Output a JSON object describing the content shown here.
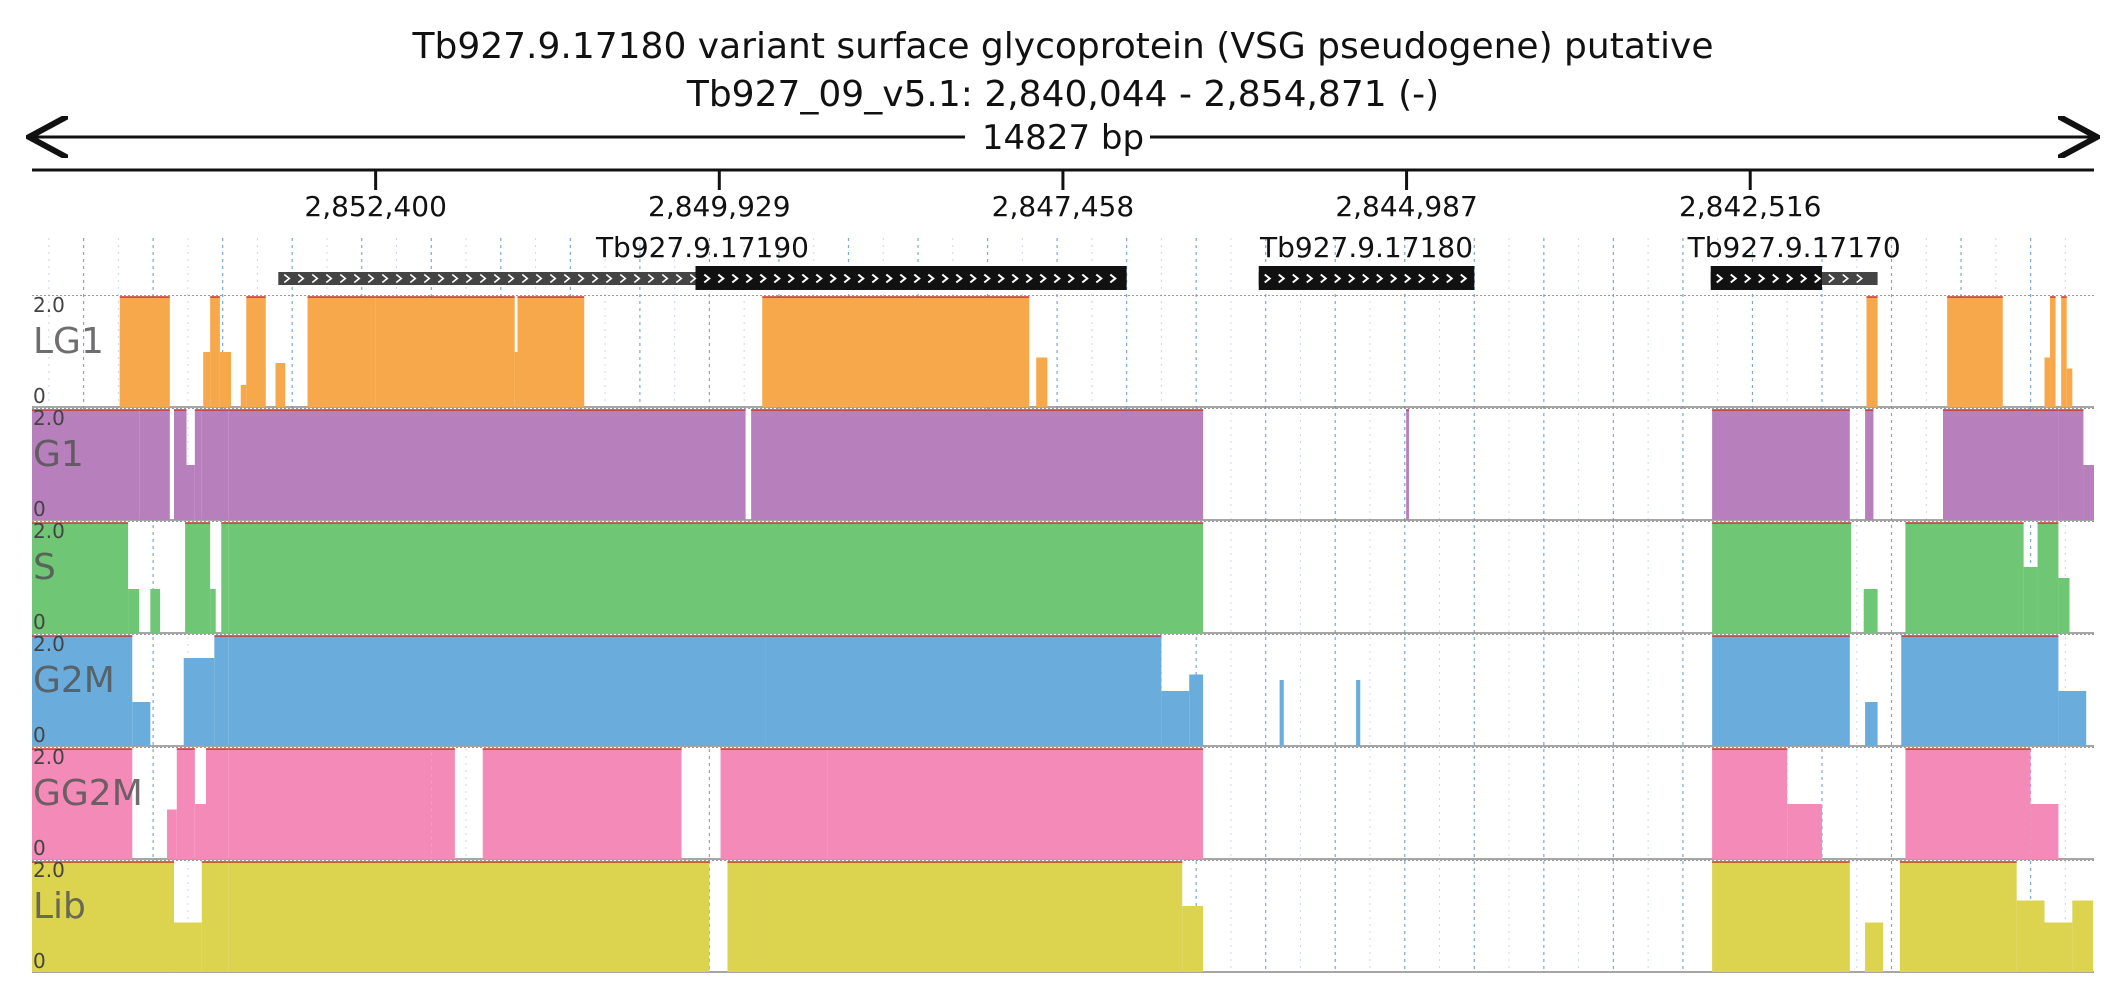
{
  "title": {
    "line1": "Tb927.9.17180  variant surface glycoprotein (VSG  pseudogene)  putative",
    "line2": "Tb927_09_v5.1: 2,840,044 - 2,854,871 (-)",
    "span_label": "14827 bp"
  },
  "chart_data": {
    "type": "area",
    "title": "Tb927.9.17180  variant surface glycoprotein (VSG  pseudogene)  putative",
    "subtitle": "Tb927_09_v5.1: 2,840,044 - 2,854,871 (-)",
    "region": {
      "chrom": "Tb927_09_v5.1",
      "start": 2840044,
      "end": 2854871,
      "strand": "-",
      "length_label": "14827 bp"
    },
    "x_axis": {
      "direction": "reversed",
      "ticks": [
        2852400,
        2849929,
        2847458,
        2844987,
        2842516
      ],
      "tick_labels": [
        "2,852,400",
        "2,849,929",
        "2,847,458",
        "2,844,987",
        "2,842,516"
      ]
    },
    "genes": [
      {
        "id": "Tb927.9.17190",
        "start": 2847000,
        "end": 2853100,
        "cds_start": 2847000,
        "cds_end": 2850100
      },
      {
        "id": "Tb927.9.17180",
        "start": 2844500,
        "end": 2846050,
        "cds_start": 2844500,
        "cds_end": 2846050
      },
      {
        "id": "Tb927.9.17170",
        "start": 2841600,
        "end": 2842800,
        "cds_start": 2842000,
        "cds_end": 2842800
      }
    ],
    "ylim": [
      0,
      2.0
    ],
    "y_tick_labels": [
      "2.0",
      "0"
    ],
    "grid": true,
    "tracks": [
      {
        "name": "LG1",
        "color": "#f7a84a",
        "segments": [
          [
            2854200,
            2854240,
            1.5
          ],
          [
            2854240,
            2853880,
            2.0
          ],
          [
            2853640,
            2853590,
            1.0
          ],
          [
            2853590,
            2853520,
            2.0
          ],
          [
            2853520,
            2853440,
            1.0
          ],
          [
            2853370,
            2853330,
            0.4
          ],
          [
            2853330,
            2853190,
            2.0
          ],
          [
            2853120,
            2853050,
            0.8
          ],
          [
            2852890,
            2852400,
            2.0
          ],
          [
            2852400,
            2851400,
            2.0
          ],
          [
            2851400,
            2851380,
            1.0
          ],
          [
            2851380,
            2850900,
            2.0
          ],
          [
            2849620,
            2847700,
            2.0
          ],
          [
            2847650,
            2847570,
            0.9
          ],
          [
            2841680,
            2841600,
            2.0
          ],
          [
            2841100,
            2840700,
            2.0
          ],
          [
            2840400,
            2840360,
            0.9
          ],
          [
            2840360,
            2840320,
            2.0
          ],
          [
            2840280,
            2840240,
            2.0
          ],
          [
            2840240,
            2840200,
            0.7
          ]
        ]
      },
      {
        "name": "G1",
        "color": "#b77fbb",
        "segments": [
          [
            2854871,
            2854100,
            2.0
          ],
          [
            2854100,
            2853880,
            2.0
          ],
          [
            2853850,
            2853760,
            2.0
          ],
          [
            2853760,
            2853700,
            1.0
          ],
          [
            2853700,
            2853650,
            2.0
          ],
          [
            2853650,
            2853460,
            2.0
          ],
          [
            2853460,
            2852800,
            2.0
          ],
          [
            2852800,
            2849740,
            2.0
          ],
          [
            2849700,
            2846450,
            2.0
          ],
          [
            2844990,
            2844970,
            2.0
          ],
          [
            2842790,
            2841800,
            2.0
          ],
          [
            2841690,
            2841630,
            2.0
          ],
          [
            2841130,
            2840300,
            2.0
          ],
          [
            2840300,
            2840120,
            2.0
          ],
          [
            2840120,
            2840000,
            1.0
          ],
          [
            2840000,
            2839800,
            2.0
          ],
          [
            2839800,
            2839700,
            1.0
          ],
          [
            2839700,
            2839590,
            2.0
          ],
          [
            2839590,
            2839550,
            1.0
          ],
          [
            2839490,
            2839400,
            1.0
          ],
          [
            2838940,
            2840044,
            2.0
          ]
        ]
      },
      {
        "name": "S",
        "color": "#6fc674",
        "segments": [
          [
            2854871,
            2854180,
            2.0
          ],
          [
            2854180,
            2854100,
            0.8
          ],
          [
            2854020,
            2853950,
            0.8
          ],
          [
            2853770,
            2853590,
            2.0
          ],
          [
            2853590,
            2853550,
            0.8
          ],
          [
            2853510,
            2853460,
            2.0
          ],
          [
            2853460,
            2846450,
            2.0
          ],
          [
            2842790,
            2841790,
            2.0
          ],
          [
            2841700,
            2841600,
            0.8
          ],
          [
            2841400,
            2840550,
            2.0
          ],
          [
            2840550,
            2840450,
            1.2
          ],
          [
            2840450,
            2840300,
            2.0
          ],
          [
            2840300,
            2840220,
            1.0
          ],
          [
            2839950,
            2839880,
            0.8
          ],
          [
            2839400,
            2839300,
            1.0
          ],
          [
            2839300,
            2840044,
            2.0
          ]
        ]
      },
      {
        "name": "G2M",
        "color": "#6aaddc",
        "segments": [
          [
            2854871,
            2854150,
            2.0
          ],
          [
            2854150,
            2854020,
            0.8
          ],
          [
            2853780,
            2853560,
            1.6
          ],
          [
            2853560,
            2853460,
            2.0
          ],
          [
            2853460,
            2849600,
            2.0
          ],
          [
            2849600,
            2846750,
            2.0
          ],
          [
            2846750,
            2846550,
            1.0
          ],
          [
            2846550,
            2846450,
            1.3
          ],
          [
            2845900,
            2845870,
            1.2
          ],
          [
            2845350,
            2845320,
            1.2
          ],
          [
            2842790,
            2841800,
            2.0
          ],
          [
            2841690,
            2841600,
            0.8
          ],
          [
            2841430,
            2840300,
            2.0
          ],
          [
            2840300,
            2840100,
            1.0
          ],
          [
            2839750,
            2839700,
            1.0
          ],
          [
            2839370,
            2840044,
            2.0
          ]
        ]
      },
      {
        "name": "GG2M",
        "color": "#f48ab8",
        "segments": [
          [
            2854871,
            2854150,
            2.0
          ],
          [
            2853900,
            2853830,
            0.9
          ],
          [
            2853830,
            2853700,
            2.0
          ],
          [
            2853700,
            2853620,
            1.0
          ],
          [
            2853620,
            2853460,
            2.0
          ],
          [
            2853460,
            2852000,
            2.0
          ],
          [
            2852000,
            2851830,
            2.0
          ],
          [
            2851630,
            2850200,
            2.0
          ],
          [
            2849920,
            2849150,
            2.0
          ],
          [
            2849150,
            2846450,
            2.0
          ],
          [
            2842790,
            2842250,
            2.0
          ],
          [
            2842250,
            2842000,
            1.0
          ],
          [
            2841400,
            2840500,
            2.0
          ],
          [
            2840500,
            2840300,
            1.0
          ],
          [
            2839400,
            2840044,
            2.0
          ]
        ]
      },
      {
        "name": "Lib",
        "color": "#dcd34f",
        "segments": [
          [
            2854871,
            2853850,
            2.0
          ],
          [
            2853850,
            2853650,
            0.9
          ],
          [
            2853650,
            2853460,
            2.0
          ],
          [
            2853460,
            2850000,
            2.0
          ],
          [
            2849870,
            2849690,
            2.0
          ],
          [
            2849690,
            2846600,
            2.0
          ],
          [
            2846600,
            2846450,
            1.2
          ],
          [
            2842790,
            2841800,
            2.0
          ],
          [
            2841690,
            2841560,
            0.9
          ],
          [
            2841440,
            2840600,
            2.0
          ],
          [
            2840600,
            2840400,
            1.3
          ],
          [
            2840400,
            2840200,
            0.9
          ],
          [
            2840200,
            2840050,
            1.3
          ],
          [
            2839880,
            2839800,
            0.9
          ],
          [
            2839450,
            2840044,
            2.0
          ]
        ]
      }
    ]
  }
}
